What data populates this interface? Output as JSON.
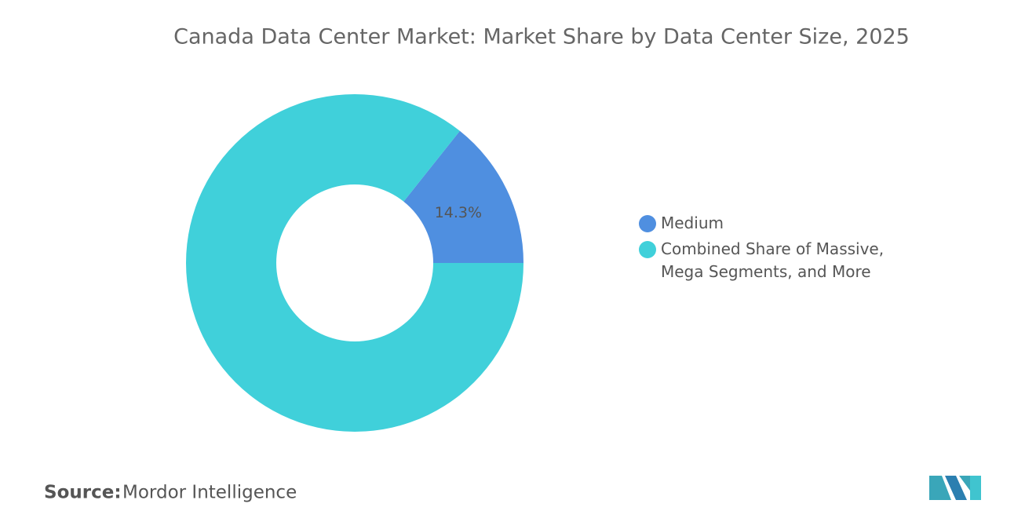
{
  "chart_data": {
    "type": "donut",
    "title": "Canada Data Center Market: Market Share by Data Center Size, 2025",
    "categories": [
      "Medium",
      "Combined Share of Massive, Mega Segments, and More"
    ],
    "values": [
      14.3,
      85.7
    ],
    "value_labels": [
      "14.3%",
      null
    ],
    "colors": [
      "#4f8fe0",
      "#40d0da"
    ],
    "source_label": "Source:",
    "source": "Mordor Intelligence"
  }
}
